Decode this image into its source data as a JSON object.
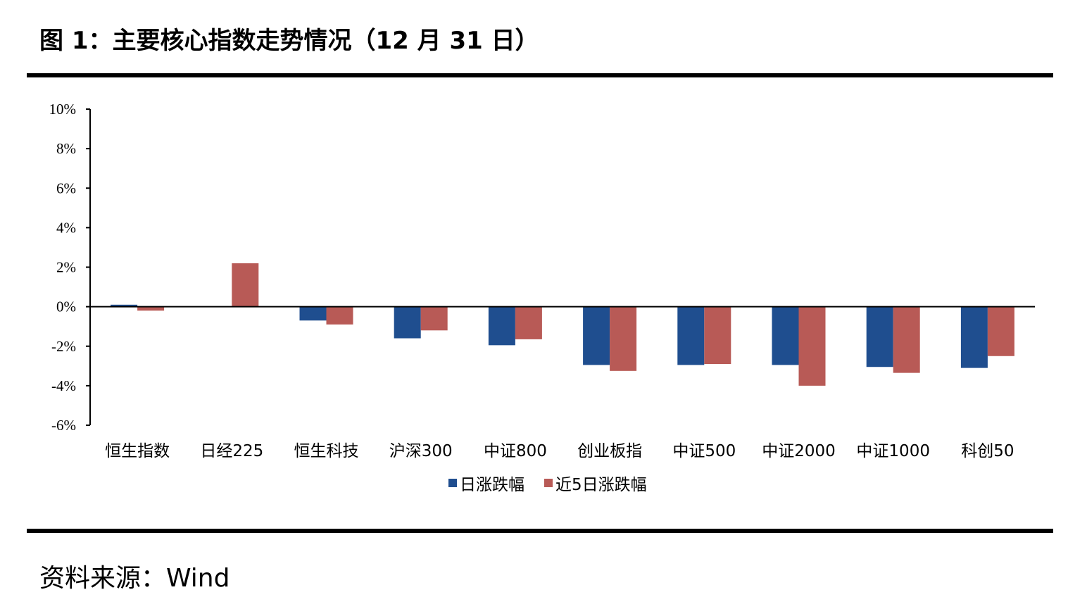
{
  "header": {
    "title": "图 1：主要核心指数走势情况（12 月 31 日）"
  },
  "footer": {
    "source": "资料来源：Wind"
  },
  "colors": {
    "daily": "#1F4E8F",
    "five_day": "#B85A56"
  },
  "chart_data": {
    "type": "bar",
    "categories": [
      "恒生指数",
      "日经225",
      "恒生科技",
      "沪深300",
      "中证800",
      "创业板指",
      "中证500",
      "中证2000",
      "中证1000",
      "科创50"
    ],
    "series": [
      {
        "name": "日涨跌幅",
        "values": [
          0.1,
          0.0,
          -0.7,
          -1.6,
          -1.95,
          -2.95,
          -2.95,
          -2.95,
          -3.05,
          -3.1
        ]
      },
      {
        "name": "近5日涨跌幅",
        "values": [
          -0.2,
          2.2,
          -0.9,
          -1.2,
          -1.65,
          -3.25,
          -2.9,
          -4.0,
          -3.35,
          -2.5
        ]
      }
    ],
    "y_ticks": [
      "10%",
      "8%",
      "6%",
      "4%",
      "2%",
      "0%",
      "-2%",
      "-4%",
      "-6%"
    ],
    "ylim": [
      -6,
      10
    ],
    "grid": false,
    "legend_position": "bottom"
  }
}
